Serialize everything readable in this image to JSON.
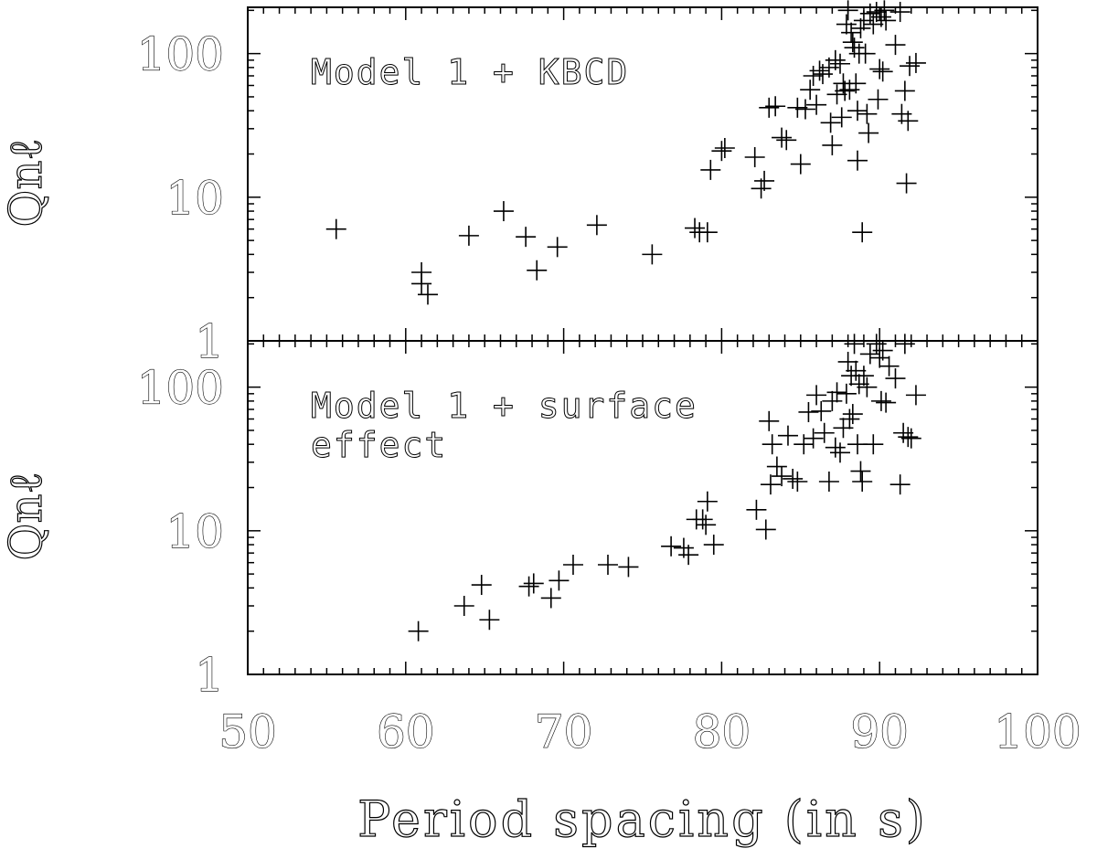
{
  "chart_data": {
    "type": "scatter",
    "xlabel": "Period spacing (in s)",
    "xlim": [
      50,
      100
    ],
    "x_ticks": [
      "50",
      "60",
      "70",
      "80",
      "90",
      "100"
    ],
    "x_tick_values": [
      50,
      60,
      70,
      80,
      90,
      100
    ],
    "y_scale": "log",
    "panels": [
      {
        "id": "top",
        "annotation_lines": [
          "Model 1 + KBCD"
        ],
        "ylabel": "Qnℓ",
        "ylim": [
          1,
          210
        ],
        "y_ticks": [
          "1",
          "10",
          "100"
        ],
        "y_tick_values": [
          1,
          10,
          100
        ],
        "marker": "plus",
        "points": [
          [
            55.6,
            6.0
          ],
          [
            61.0,
            3.0
          ],
          [
            61.0,
            2.5
          ],
          [
            61.4,
            2.1
          ],
          [
            64.0,
            5.4
          ],
          [
            66.2,
            8.0
          ],
          [
            67.6,
            5.3
          ],
          [
            68.3,
            3.1
          ],
          [
            69.6,
            4.5
          ],
          [
            72.1,
            6.4
          ],
          [
            75.6,
            4.0
          ],
          [
            78.3,
            6.1
          ],
          [
            78.6,
            5.7
          ],
          [
            79.1,
            5.7
          ],
          [
            79.3,
            15.5
          ],
          [
            80.0,
            21.0
          ],
          [
            80.2,
            22.0
          ],
          [
            82.1,
            19.0
          ],
          [
            82.5,
            11.5
          ],
          [
            82.7,
            13.0
          ],
          [
            83.0,
            42.0
          ],
          [
            83.4,
            43.0
          ],
          [
            83.8,
            26.0
          ],
          [
            84.1,
            25.0
          ],
          [
            84.8,
            42.0
          ],
          [
            85.0,
            17.0
          ],
          [
            85.3,
            41.0
          ],
          [
            85.6,
            56.0
          ],
          [
            85.8,
            70.0
          ],
          [
            86.0,
            44.0
          ],
          [
            86.2,
            76.0
          ],
          [
            86.4,
            72.0
          ],
          [
            86.8,
            80.0
          ],
          [
            86.9,
            33.0
          ],
          [
            87.0,
            23.0
          ],
          [
            87.2,
            90.0
          ],
          [
            87.3,
            52.0
          ],
          [
            87.5,
            85.0
          ],
          [
            87.6,
            36.0
          ],
          [
            87.7,
            62.0
          ],
          [
            87.8,
            55.0
          ],
          [
            87.9,
            160.0
          ],
          [
            88.0,
            200.0
          ],
          [
            88.1,
            56.0
          ],
          [
            88.2,
            140.0
          ],
          [
            88.3,
            120.0
          ],
          [
            88.4,
            110.0
          ],
          [
            88.5,
            62.0
          ],
          [
            88.6,
            40.0
          ],
          [
            88.6,
            18.0
          ],
          [
            88.7,
            100.0
          ],
          [
            88.8,
            150.0
          ],
          [
            88.9,
            5.7
          ],
          [
            89.0,
            170.0
          ],
          [
            89.1,
            100.0
          ],
          [
            89.2,
            38.0
          ],
          [
            89.3,
            28.0
          ],
          [
            89.4,
            190.0
          ],
          [
            89.6,
            160.0
          ],
          [
            89.8,
            195.0
          ],
          [
            89.9,
            48.0
          ],
          [
            90.0,
            78.0
          ],
          [
            90.1,
            180.0
          ],
          [
            90.2,
            75.0
          ],
          [
            90.3,
            200.0
          ],
          [
            90.4,
            170.0
          ],
          [
            91.0,
            115.0
          ],
          [
            91.3,
            195.0
          ],
          [
            91.4,
            38.0
          ],
          [
            91.6,
            55.0
          ],
          [
            91.7,
            12.5
          ],
          [
            91.8,
            34.0
          ],
          [
            91.9,
            82.0
          ],
          [
            92.3,
            86.0
          ]
        ]
      },
      {
        "id": "bottom",
        "annotation_lines": [
          "Model 1 + surface",
          "effect"
        ],
        "ylabel": "Qnℓ",
        "ylim": [
          1,
          210
        ],
        "y_ticks": [
          "1",
          "10",
          "100"
        ],
        "y_tick_values": [
          1,
          10,
          100
        ],
        "marker": "plus",
        "points": [
          [
            60.8,
            2.0
          ],
          [
            63.7,
            3.0
          ],
          [
            64.8,
            4.2
          ],
          [
            65.3,
            2.4
          ],
          [
            67.8,
            4.1
          ],
          [
            68.1,
            4.3
          ],
          [
            69.2,
            3.4
          ],
          [
            69.7,
            4.5
          ],
          [
            70.6,
            5.8
          ],
          [
            72.8,
            5.8
          ],
          [
            74.1,
            5.6
          ],
          [
            76.8,
            7.8
          ],
          [
            77.6,
            7.6
          ],
          [
            77.9,
            6.8
          ],
          [
            78.4,
            12.0
          ],
          [
            78.8,
            12.0
          ],
          [
            79.0,
            11.0
          ],
          [
            79.1,
            16.0
          ],
          [
            79.5,
            8.0
          ],
          [
            82.2,
            14.0
          ],
          [
            82.8,
            10.2
          ],
          [
            83.0,
            58.0
          ],
          [
            83.1,
            21.0
          ],
          [
            83.2,
            40.0
          ],
          [
            83.5,
            28.0
          ],
          [
            83.8,
            24.0
          ],
          [
            84.2,
            46.0
          ],
          [
            84.5,
            23.0
          ],
          [
            84.8,
            22.0
          ],
          [
            85.2,
            40.0
          ],
          [
            85.5,
            67.0
          ],
          [
            85.8,
            44.0
          ],
          [
            86.0,
            88.0
          ],
          [
            86.3,
            68.0
          ],
          [
            86.5,
            48.0
          ],
          [
            86.8,
            22.0
          ],
          [
            87.0,
            80.0
          ],
          [
            87.2,
            38.0
          ],
          [
            87.3,
            92.0
          ],
          [
            87.5,
            35.0
          ],
          [
            87.7,
            52.0
          ],
          [
            87.9,
            90.0
          ],
          [
            88.0,
            150.0
          ],
          [
            88.1,
            60.0
          ],
          [
            88.2,
            120.0
          ],
          [
            88.3,
            65.0
          ],
          [
            88.4,
            200.0
          ],
          [
            88.5,
            130.0
          ],
          [
            88.6,
            40.0
          ],
          [
            88.7,
            105.0
          ],
          [
            88.8,
            26.0
          ],
          [
            88.9,
            22.0
          ],
          [
            89.0,
            120.0
          ],
          [
            89.2,
            100.0
          ],
          [
            89.4,
            170.0
          ],
          [
            89.6,
            40.0
          ],
          [
            89.8,
            200.0
          ],
          [
            90.0,
            160.0
          ],
          [
            90.1,
            80.0
          ],
          [
            90.2,
            180.0
          ],
          [
            90.4,
            78.0
          ],
          [
            90.6,
            140.0
          ],
          [
            91.0,
            115.0
          ],
          [
            91.3,
            21.0
          ],
          [
            91.5,
            48.0
          ],
          [
            91.6,
            200.0
          ],
          [
            91.8,
            45.0
          ],
          [
            92.0,
            44.0
          ],
          [
            92.3,
            88.0
          ]
        ]
      }
    ]
  }
}
